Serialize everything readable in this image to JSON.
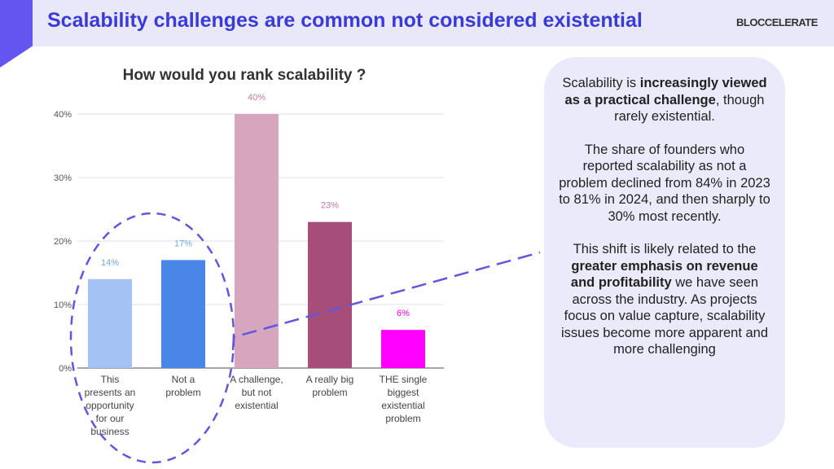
{
  "header": {
    "title": "Scalability challenges are common not considered existential",
    "logo": "BLOCCELERATE"
  },
  "callout": {
    "p1": {
      "a": "Scalability is ",
      "b": "increasingly viewed as a practical challenge",
      "c": ", though rarely existential."
    },
    "p2": "The share of founders who reported scalability as not a problem declined from 84% in 2023 to 81% in 2024, and then sharply to 30% most recently.",
    "p3": {
      "a": "This shift is likely related to the ",
      "b": "greater emphasis on revenue and profitability",
      "c": " we have seen across the industry. As projects focus on value capture, scalability issues become more apparent and more challenging"
    }
  },
  "chart_data": {
    "type": "bar",
    "title": "How would you rank scalability ?",
    "categories": [
      "This presents an opportunity for our business",
      "Not a problem",
      "A challenge, but not existential",
      "A really big problem",
      "THE single biggest existential problem"
    ],
    "values": [
      14,
      17,
      40,
      23,
      6
    ],
    "data_labels": [
      "14%",
      "17%",
      "40%",
      "23%",
      "6%"
    ],
    "colors": [
      "#a4c2f4",
      "#4a86e8",
      "#d5a6bd",
      "#a64d79",
      "#ff00ff"
    ],
    "label_colors": [
      "#6fa8dc",
      "#6fa8dc",
      "#c27ba0",
      "#c27ba0",
      "#ff00ff"
    ],
    "yticks": [
      "0%",
      "10%",
      "20%",
      "30%",
      "40%"
    ],
    "ylim": [
      0,
      40
    ],
    "grid": true,
    "annotation_color": "#6455e0"
  }
}
